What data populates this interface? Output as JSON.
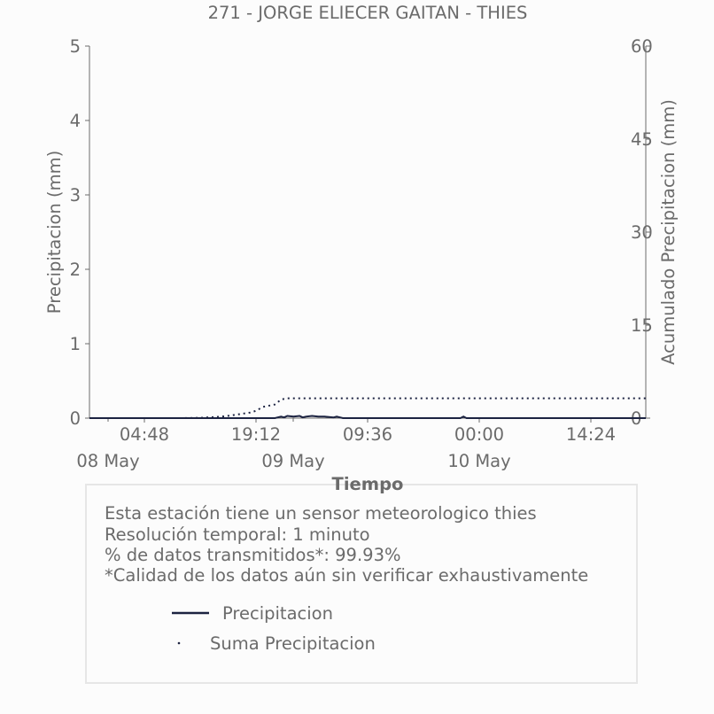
{
  "chart_data": {
    "type": "line",
    "title": "271 - JORGE ELIECER GAITAN - THIES",
    "xlabel": "Tiempo",
    "ylabel_left": "Precipitacion (mm)",
    "ylabel_right": "Acumulado Precipitacion (mm)",
    "ylim_left": [
      0,
      5
    ],
    "ylim_right": [
      0,
      60
    ],
    "yticks_left": [
      "0",
      "1",
      "2",
      "3",
      "4",
      "5"
    ],
    "yticks_right": [
      "0",
      "15",
      "30",
      "45",
      "60"
    ],
    "x_time_ticks": [
      "04:48",
      "19:12",
      "09:36",
      "00:00",
      "14:24"
    ],
    "x_date_ticks": [
      "08 May",
      "09 May",
      "10 May"
    ],
    "grid": false,
    "series": [
      {
        "name": "Precipitacion",
        "axis": "left",
        "style": "solid",
        "color": "#1c2341",
        "x_hours": [
          0,
          30,
          31,
          31.5,
          32,
          33,
          34,
          34.5,
          35,
          36,
          37,
          38,
          39.5,
          40,
          41,
          60,
          60.5,
          61,
          90
        ],
        "values": [
          0,
          0,
          0.02,
          0.01,
          0.03,
          0.02,
          0.03,
          0.01,
          0.02,
          0.03,
          0.02,
          0.02,
          0.01,
          0.02,
          0,
          0,
          0.02,
          0,
          0
        ]
      },
      {
        "name": "Suma Precipitacion",
        "axis": "right",
        "style": "dotted",
        "color": "#1c2341",
        "x_hours": [
          0,
          15,
          18,
          20,
          22,
          24,
          26,
          27,
          28,
          30,
          31,
          32,
          90
        ],
        "values": [
          0,
          0,
          0.05,
          0.15,
          0.3,
          0.6,
          0.9,
          1.2,
          1.8,
          2.2,
          3.0,
          3.2,
          3.2
        ]
      }
    ]
  },
  "info": {
    "line1": "Esta estación tiene un sensor meteorologico thies",
    "line2": "Resolución temporal: 1 minuto",
    "line3": "% de datos transmitidos*: 99.93%",
    "line4": "*Calidad de los datos aún sin verificar exhaustivamente"
  },
  "legend": {
    "item1": "Precipitacion",
    "item2": "Suma Precipitacion"
  }
}
